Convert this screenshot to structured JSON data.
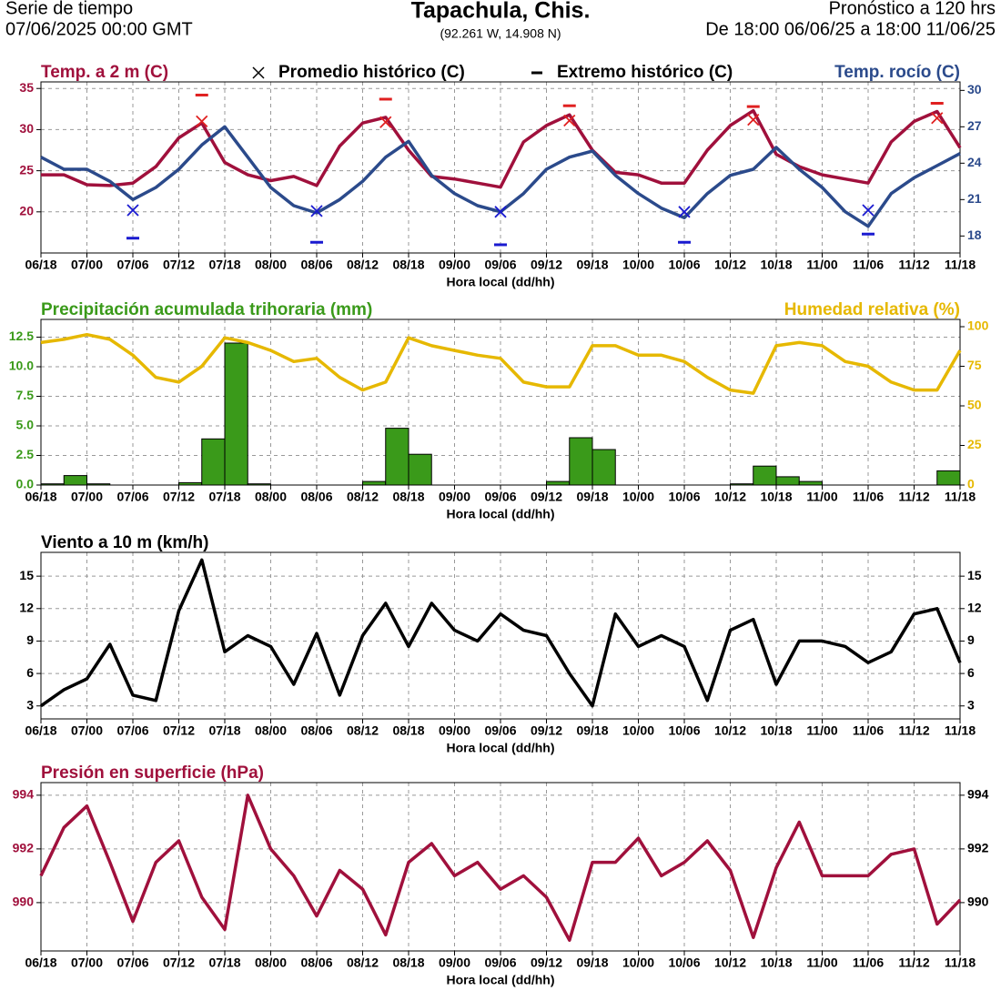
{
  "header": {
    "left_line1": "Serie de tiempo",
    "left_line2": "07/06/2025 00:00 GMT",
    "title": "Tapachula, Chis.",
    "subtitle": "(92.261 W, 14.908 N)",
    "right_line1": "Pronóstico a 120 hrs",
    "right_line2": "De 18:00 06/06/25 a 18:00 11/06/25"
  },
  "chart_data": [
    {
      "type": "combo",
      "xlabel": "Hora local (dd/hh)",
      "categories": [
        "06/18",
        null,
        "07/00",
        null,
        "07/06",
        null,
        "07/12",
        null,
        "07/18",
        null,
        "08/00",
        null,
        "08/06",
        null,
        "08/12",
        null,
        "08/18",
        null,
        "09/00",
        null,
        "09/06",
        null,
        "09/12",
        null,
        "09/18",
        null,
        "10/00",
        null,
        "10/06",
        null,
        "10/12",
        null,
        "10/18",
        null,
        "11/00",
        null,
        "11/06",
        null,
        "11/12",
        null,
        "11/18"
      ],
      "ylim": [
        15,
        35.8
      ],
      "yticks": [
        20,
        25,
        30,
        35
      ],
      "y2lim": [
        16.6,
        30.7
      ],
      "y2ticks": [
        18,
        21,
        24,
        27,
        30
      ],
      "grid": true,
      "series": [
        {
          "name": "Temp. a 2 m (C)",
          "type": "line",
          "color": "#a0103c",
          "values": [
            24.5,
            24.5,
            23.3,
            23.2,
            23.5,
            25.5,
            29.0,
            30.8,
            26.0,
            24.5,
            23.8,
            24.3,
            23.2,
            28.0,
            30.8,
            31.5,
            27.5,
            24.3,
            24.0,
            23.5,
            23.0,
            28.5,
            30.5,
            31.8,
            27.5,
            24.8,
            24.5,
            23.5,
            23.5,
            27.5,
            30.5,
            32.3,
            27.0,
            25.5,
            24.5,
            24.0,
            23.5,
            28.5,
            31.0,
            32.2,
            27.8
          ]
        },
        {
          "name": "Temp. rocío (C)",
          "type": "line",
          "axis": "y2",
          "color": "#2b4a8b",
          "values": [
            24.5,
            23.5,
            23.5,
            22.5,
            21.0,
            22,
            23.5,
            25.5,
            27,
            24.5,
            22,
            20.5,
            19.9,
            21,
            22.5,
            24.5,
            25.8,
            23,
            21.5,
            20.5,
            20,
            21.5,
            23.5,
            24.5,
            25,
            23,
            21.5,
            20.3,
            19.5,
            21.5,
            23,
            23.5,
            25.3,
            23.5,
            22,
            20,
            18.8,
            21.5,
            22.8,
            23.8,
            24.8
          ]
        },
        {
          "name": "Promedio histórico (C)",
          "type": "marker",
          "marker": "x",
          "color": "#e02020",
          "low_color": "#1a1ad0",
          "values": [
            null,
            null,
            null,
            null,
            null,
            null,
            null,
            31.0,
            null,
            null,
            null,
            null,
            null,
            null,
            null,
            30.9,
            null,
            null,
            null,
            null,
            null,
            null,
            null,
            31.1,
            null,
            null,
            null,
            null,
            null,
            null,
            null,
            31.2,
            null,
            null,
            null,
            null,
            null,
            null,
            null,
            31.4,
            null
          ],
          "low_values": [
            null,
            null,
            null,
            null,
            20.2,
            null,
            null,
            null,
            null,
            null,
            null,
            null,
            20.1,
            null,
            null,
            null,
            null,
            null,
            null,
            null,
            20.0,
            null,
            null,
            null,
            null,
            null,
            null,
            null,
            20.0,
            null,
            null,
            null,
            null,
            null,
            null,
            null,
            20.2,
            null,
            null,
            null,
            null
          ]
        },
        {
          "name": "Extremo histórico (C)",
          "type": "marker",
          "marker": "dash",
          "color": "#e02020",
          "low_color": "#1a1ad0",
          "values": [
            null,
            null,
            null,
            null,
            null,
            null,
            null,
            34.2,
            null,
            null,
            null,
            null,
            null,
            null,
            null,
            33.7,
            null,
            null,
            null,
            null,
            null,
            null,
            null,
            32.9,
            null,
            null,
            null,
            null,
            null,
            null,
            null,
            32.8,
            null,
            null,
            null,
            null,
            null,
            null,
            null,
            33.2,
            null
          ],
          "low_values": [
            null,
            null,
            null,
            null,
            16.8,
            null,
            null,
            null,
            null,
            null,
            null,
            null,
            16.3,
            null,
            null,
            null,
            null,
            null,
            null,
            null,
            16.0,
            null,
            null,
            null,
            null,
            null,
            null,
            null,
            16.3,
            null,
            null,
            null,
            null,
            null,
            null,
            null,
            17.3,
            null,
            null,
            null,
            null
          ]
        }
      ]
    },
    {
      "type": "combo",
      "xlabel": "Hora local (dd/hh)",
      "categories": [
        "06/18",
        null,
        "07/00",
        null,
        "07/06",
        null,
        "07/12",
        null,
        "07/18",
        null,
        "08/00",
        null,
        "08/06",
        null,
        "08/12",
        null,
        "08/18",
        null,
        "09/00",
        null,
        "09/06",
        null,
        "09/12",
        null,
        "09/18",
        null,
        "10/00",
        null,
        "10/06",
        null,
        "10/12",
        null,
        "10/18",
        null,
        "11/00",
        null,
        "11/06",
        null,
        "11/12",
        null,
        "11/18"
      ],
      "ylim": [
        0,
        14
      ],
      "yticks": [
        {
          "value": 0,
          "label": "0.0"
        },
        2.5,
        {
          "value": 5,
          "label": "5.0"
        },
        7.5,
        {
          "value": 10,
          "label": "10.0"
        },
        12.5
      ],
      "y2lim": [
        0,
        104.6
      ],
      "y2ticks": [
        0,
        25,
        50,
        75,
        100
      ],
      "grid": true,
      "series": [
        {
          "name": "Precipitación acumulada trihoraria (mm)",
          "type": "bar",
          "color": "#3a9a1a",
          "values": [
            null,
            0.1,
            0.8,
            0.1,
            0,
            0,
            0,
            0.2,
            3.9,
            12.0,
            0.1,
            0,
            0,
            0,
            0,
            0.3,
            4.8,
            2.6,
            0,
            0,
            0,
            0,
            0,
            0.3,
            4.0,
            3.0,
            0,
            0,
            0,
            0,
            0,
            0.1,
            1.6,
            0.7,
            0.3,
            0,
            0,
            0,
            0,
            0,
            1.2
          ]
        },
        {
          "name": "Humedad relativa (%)",
          "type": "line",
          "axis": "y2",
          "color": "#e6b800",
          "values": [
            90,
            92,
            95,
            92,
            82,
            68,
            65,
            75,
            93,
            90,
            85,
            78,
            80,
            68,
            60,
            65,
            93,
            88,
            85,
            82,
            80,
            65,
            62,
            62,
            88,
            88,
            82,
            82,
            78,
            68,
            60,
            58,
            88,
            90,
            88,
            78,
            75,
            65,
            60,
            60,
            85
          ]
        }
      ]
    },
    {
      "type": "line",
      "xlabel": "Hora local (dd/hh)",
      "categories": [
        "06/18",
        null,
        "07/00",
        null,
        "07/06",
        null,
        "07/12",
        null,
        "07/18",
        null,
        "08/00",
        null,
        "08/06",
        null,
        "08/12",
        null,
        "08/18",
        null,
        "09/00",
        null,
        "09/06",
        null,
        "09/12",
        null,
        "09/18",
        null,
        "10/00",
        null,
        "10/06",
        null,
        "10/12",
        null,
        "10/18",
        null,
        "11/00",
        null,
        "11/06",
        null,
        "11/12",
        null,
        "11/18"
      ],
      "ylim": [
        1.8,
        17.2
      ],
      "yticks": [
        3,
        6,
        9,
        12,
        15
      ],
      "y2lim": [
        1.8,
        17.2
      ],
      "y2ticks": [
        3,
        6,
        9,
        12,
        15
      ],
      "grid": true,
      "series": [
        {
          "name": "Viento a 10 m (km/h)",
          "type": "line",
          "color": "#000000",
          "values": [
            3,
            4.5,
            5.5,
            8.7,
            4,
            3.5,
            11.8,
            16.5,
            8,
            9.5,
            8.5,
            5,
            9.7,
            4,
            9.5,
            12.5,
            8.5,
            12.5,
            10,
            9,
            11.5,
            10,
            9.5,
            6,
            3,
            11.5,
            8.5,
            9.5,
            8.5,
            3.5,
            10,
            11,
            5,
            9,
            9,
            8.5,
            7,
            8,
            11.5,
            12,
            7
          ]
        }
      ]
    },
    {
      "type": "line",
      "xlabel": "Hora local (dd/hh)",
      "categories": [
        "06/18",
        null,
        "07/00",
        null,
        "07/06",
        null,
        "07/12",
        null,
        "07/18",
        null,
        "08/00",
        null,
        "08/06",
        null,
        "08/12",
        null,
        "08/18",
        null,
        "09/00",
        null,
        "09/06",
        null,
        "09/12",
        null,
        "09/18",
        null,
        "10/00",
        null,
        "10/06",
        null,
        "10/12",
        null,
        "10/18",
        null,
        "11/00",
        null,
        "11/06",
        null,
        "11/12",
        null,
        "11/18"
      ],
      "ylim": [
        988.2,
        994.47
      ],
      "yticks": [
        990,
        992,
        994
      ],
      "y2lim": [
        988.2,
        994.47
      ],
      "y2ticks": [
        990,
        992,
        994
      ],
      "grid": true,
      "series": [
        {
          "name": "Presión en superficie (hPa)",
          "type": "line",
          "color": "#a0103c",
          "values": [
            991,
            992.8,
            993.6,
            991.5,
            989.3,
            991.5,
            992.3,
            990.2,
            989.0,
            994.0,
            992,
            991,
            989.5,
            991.2,
            990.5,
            988.8,
            991.5,
            992.2,
            991,
            991.5,
            990.5,
            991,
            990.2,
            988.6,
            991.5,
            991.5,
            992.4,
            991,
            991.5,
            992.3,
            991.2,
            988.7,
            991.3,
            993,
            991,
            991,
            991,
            991.8,
            992,
            989.2,
            990.1
          ]
        }
      ]
    }
  ]
}
